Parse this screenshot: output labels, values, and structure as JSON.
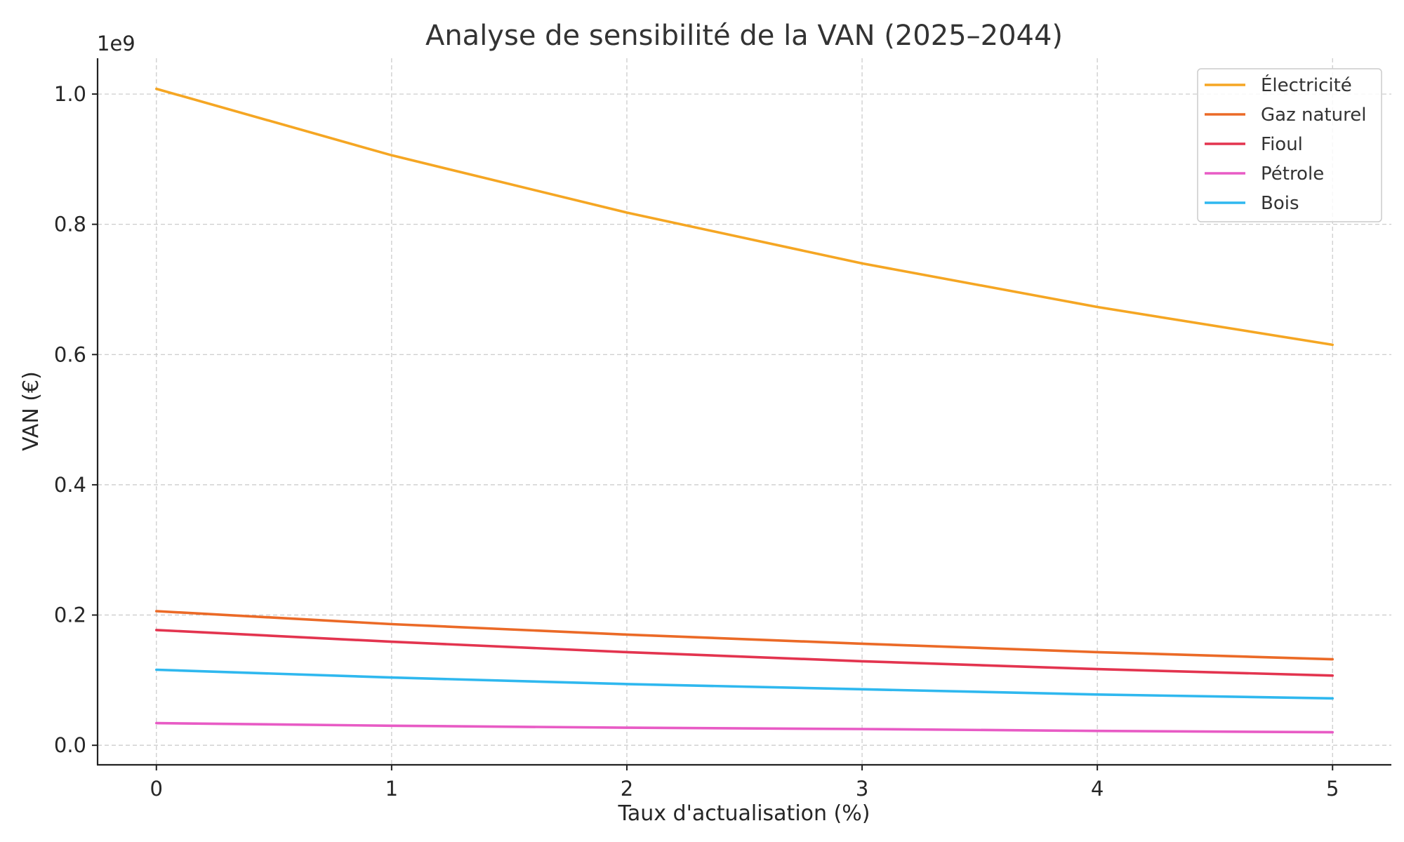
{
  "chart_data": {
    "type": "line",
    "title": "Analyse de sensibilité de la VAN (2025–2044)",
    "xlabel": "Taux d'actualisation (%)",
    "ylabel": "VAN (€)",
    "y_offset_label": "1e9",
    "x": [
      0,
      1,
      2,
      3,
      4,
      5
    ],
    "xlim": [
      -0.25,
      5.25
    ],
    "ylim": [
      -0.03,
      1.055
    ],
    "x_ticks": [
      0,
      1,
      2,
      3,
      4,
      5
    ],
    "x_tick_labels": [
      "0",
      "1",
      "2",
      "3",
      "4",
      "5"
    ],
    "y_ticks": [
      0.0,
      0.2,
      0.4,
      0.6,
      0.8,
      1.0
    ],
    "y_tick_labels": [
      "0.0",
      "0.2",
      "0.4",
      "0.6",
      "0.8",
      "1.0"
    ],
    "grid": true,
    "legend_position": "top-right",
    "series": [
      {
        "name": "Électricité",
        "color": "#f5a623",
        "values": [
          1.008,
          0.906,
          0.818,
          0.74,
          0.673,
          0.615
        ]
      },
      {
        "name": "Gaz naturel",
        "color": "#eb6a27",
        "values": [
          0.206,
          0.186,
          0.17,
          0.156,
          0.143,
          0.132
        ]
      },
      {
        "name": "Fioul",
        "color": "#e3344f",
        "values": [
          0.177,
          0.159,
          0.143,
          0.129,
          0.117,
          0.107
        ]
      },
      {
        "name": "Pétrole",
        "color": "#e85bc5",
        "values": [
          0.034,
          0.03,
          0.027,
          0.025,
          0.022,
          0.02
        ]
      },
      {
        "name": "Bois",
        "color": "#2fb8ef",
        "values": [
          0.116,
          0.104,
          0.094,
          0.086,
          0.078,
          0.072
        ]
      }
    ]
  }
}
